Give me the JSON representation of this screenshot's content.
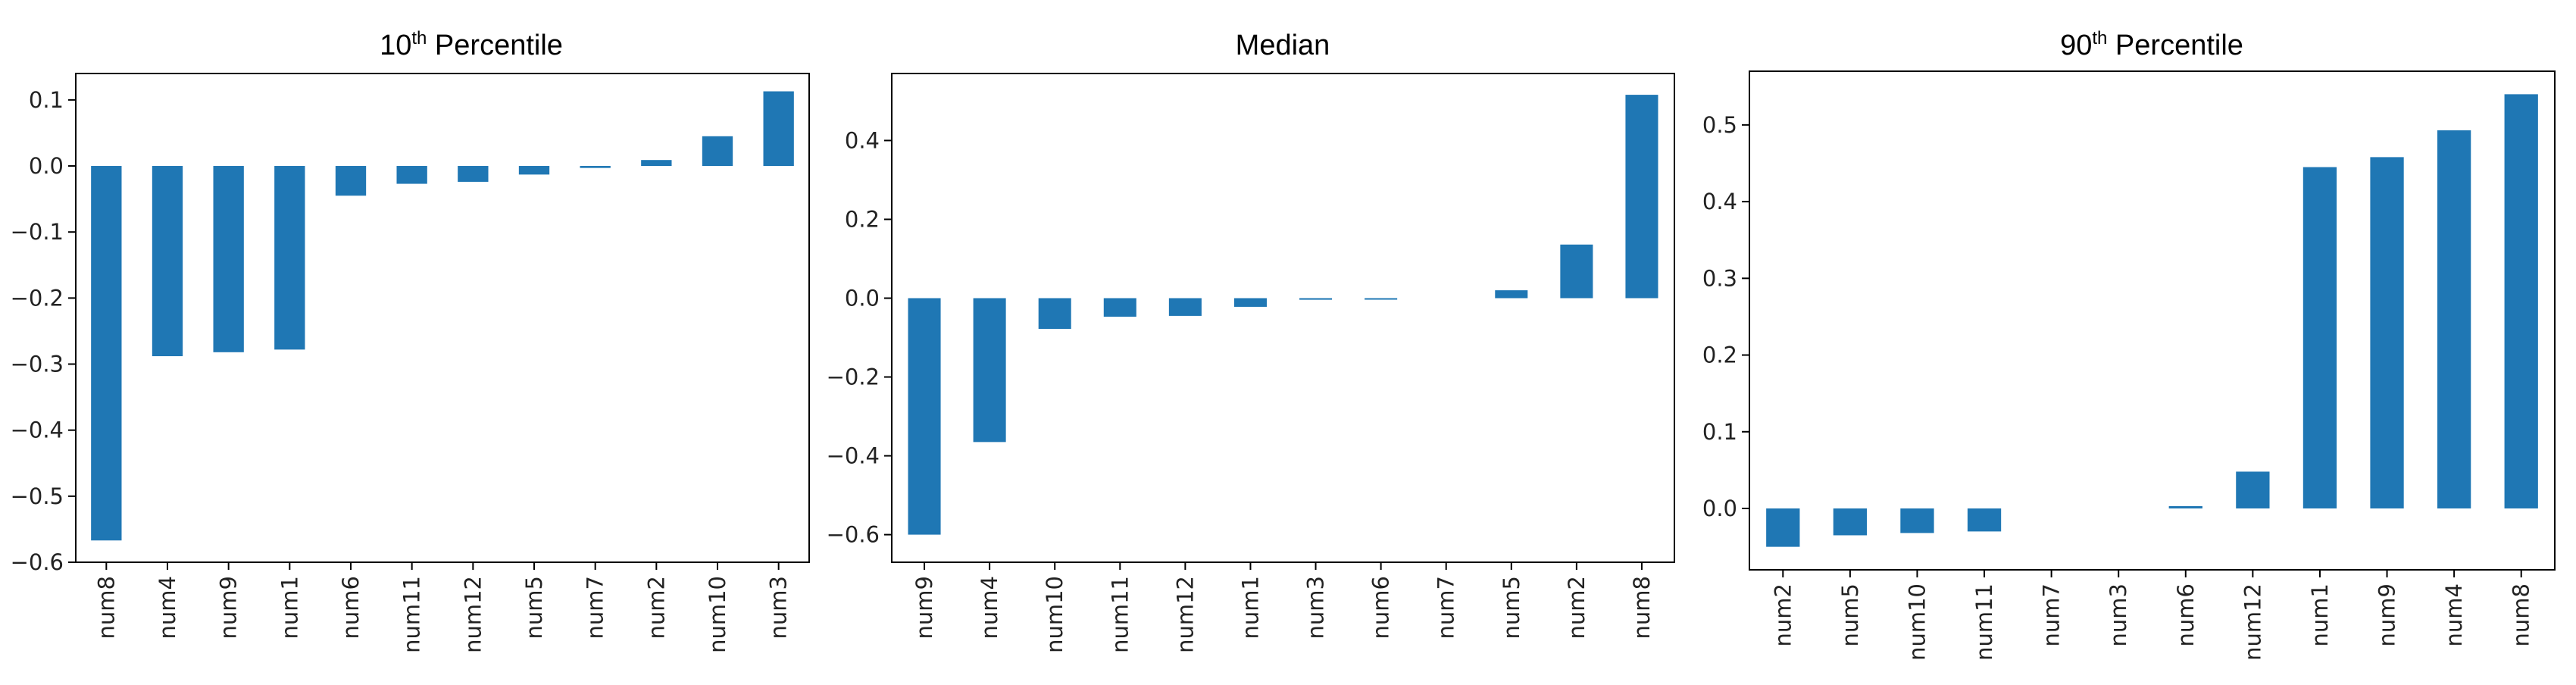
{
  "chart_data": [
    {
      "type": "bar",
      "title": "10",
      "title_superscript": "th",
      "title_suffix": " Percentile",
      "categories": [
        "num8",
        "num4",
        "num9",
        "num1",
        "num6",
        "num11",
        "num12",
        "num5",
        "num7",
        "num2",
        "num10",
        "num3"
      ],
      "values": [
        -0.567,
        -0.288,
        -0.282,
        -0.278,
        -0.045,
        -0.027,
        -0.024,
        -0.013,
        -0.003,
        0.009,
        0.045,
        0.113
      ],
      "ylim": [
        -0.6,
        0.14
      ],
      "yticks": [
        0.1,
        0.0,
        -0.1,
        -0.2,
        -0.3,
        -0.4,
        -0.5,
        -0.6
      ],
      "ytick_labels": [
        "0.1",
        "0.0",
        "−0.1",
        "−0.2",
        "−0.3",
        "−0.4",
        "−0.5",
        "−0.6"
      ],
      "grid": false,
      "color": "#1f77b4"
    },
    {
      "type": "bar",
      "title": "Median",
      "title_superscript": "",
      "title_suffix": "",
      "categories": [
        "num9",
        "num4",
        "num10",
        "num11",
        "num12",
        "num1",
        "num3",
        "num6",
        "num7",
        "num5",
        "num2",
        "num8"
      ],
      "values": [
        -0.6,
        -0.365,
        -0.078,
        -0.047,
        -0.045,
        -0.022,
        -0.004,
        -0.003,
        0.0,
        0.02,
        0.136,
        0.516
      ],
      "ylim": [
        -0.67,
        0.57
      ],
      "yticks": [
        0.4,
        0.2,
        0.0,
        -0.2,
        -0.4,
        -0.6
      ],
      "ytick_labels": [
        "0.4",
        "0.2",
        "0.0",
        "−0.2",
        "−0.4",
        "−0.6"
      ],
      "grid": false,
      "color": "#1f77b4"
    },
    {
      "type": "bar",
      "title": "90",
      "title_superscript": "th",
      "title_suffix": " Percentile",
      "categories": [
        "num2",
        "num5",
        "num10",
        "num11",
        "num7",
        "num3",
        "num6",
        "num12",
        "num1",
        "num9",
        "num4",
        "num8"
      ],
      "values": [
        -0.05,
        -0.035,
        -0.032,
        -0.03,
        0.0,
        0.0,
        0.003,
        0.048,
        0.445,
        0.458,
        0.493,
        0.54
      ],
      "ylim": [
        -0.08,
        0.57
      ],
      "yticks": [
        0.5,
        0.4,
        0.3,
        0.2,
        0.1,
        0.0
      ],
      "ytick_labels": [
        "0.5",
        "0.4",
        "0.3",
        "0.2",
        "0.1",
        "0.0"
      ],
      "grid": false,
      "color": "#1f77b4"
    }
  ]
}
